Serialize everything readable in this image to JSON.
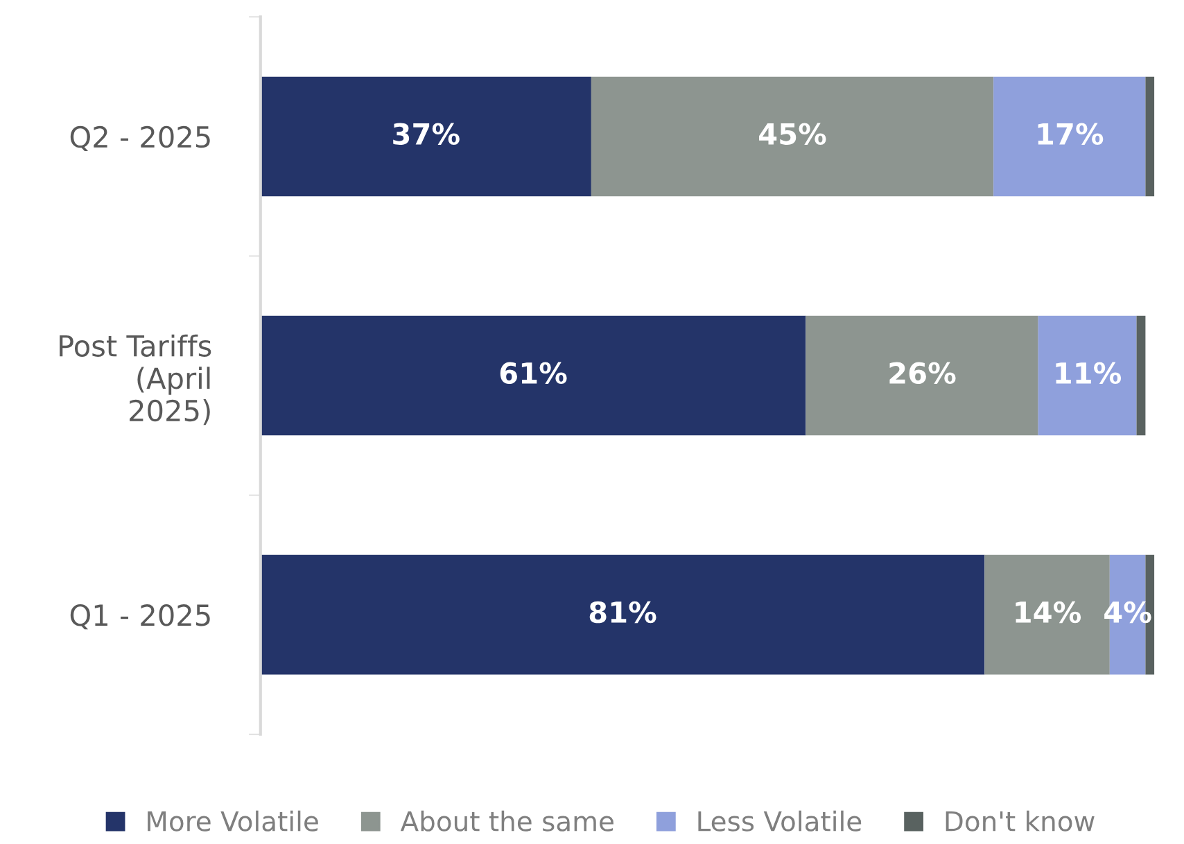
{
  "chart_data": {
    "type": "bar",
    "orientation": "horizontal",
    "stacked": true,
    "categories": [
      "Q2 - 2025",
      "Post Tariffs\n(April\n2025)",
      "Q1 - 2025"
    ],
    "series": [
      {
        "name": "More Volatile",
        "color": "#243469",
        "values": [
          37,
          61,
          81
        ],
        "value_labels": [
          "37%",
          "61%",
          "81%"
        ]
      },
      {
        "name": "About the same",
        "color": "#8d9590",
        "values": [
          45,
          26,
          14
        ],
        "value_labels": [
          "45%",
          "26%",
          "14%"
        ]
      },
      {
        "name": "Less Volatile",
        "color": "#8fa0dc",
        "values": [
          17,
          11,
          4
        ],
        "value_labels": [
          "17%",
          "11%",
          "4%"
        ]
      },
      {
        "name": "Don't know",
        "color": "#596260",
        "values": [
          1,
          1,
          1
        ],
        "value_labels": [
          null,
          null,
          null
        ]
      }
    ],
    "legend": "bottom",
    "tick_labels": "y",
    "grid": false
  }
}
